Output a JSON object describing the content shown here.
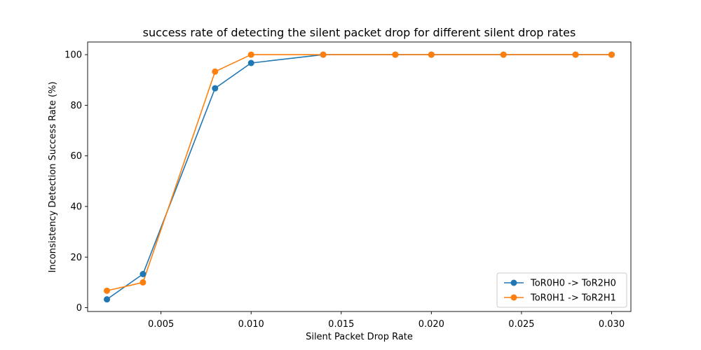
{
  "chart_data": {
    "type": "line",
    "title": "success rate of detecting the silent packet drop for different silent drop rates",
    "xlabel": "Silent Packet Drop Rate",
    "ylabel": "Inconsistency Detection Success Rate (%)",
    "xlim": [
      0.00093,
      0.03107
    ],
    "ylim": [
      -1.5,
      105.0
    ],
    "xticks": [
      0.005,
      0.01,
      0.015,
      0.02,
      0.025,
      0.03
    ],
    "xtick_labels": [
      "0.005",
      "0.010",
      "0.015",
      "0.020",
      "0.025",
      "0.030"
    ],
    "yticks": [
      0,
      20,
      40,
      60,
      80,
      100
    ],
    "ytick_labels": [
      "0",
      "20",
      "40",
      "60",
      "80",
      "100"
    ],
    "grid": false,
    "legend_position": "lower-right",
    "series": [
      {
        "name": "ToR0H0 -> ToR2H0",
        "color": "#1f77b4",
        "marker": "circle",
        "x": [
          0.002,
          0.004,
          0.008,
          0.01,
          0.014,
          0.018,
          0.02,
          0.024,
          0.028,
          0.03
        ],
        "y": [
          3.3,
          13.3,
          86.7,
          96.7,
          100,
          100,
          100,
          100,
          100,
          100
        ]
      },
      {
        "name": "ToR0H1 -> ToR2H1",
        "color": "#ff7f0e",
        "marker": "circle",
        "x": [
          0.002,
          0.004,
          0.008,
          0.01,
          0.014,
          0.018,
          0.02,
          0.024,
          0.028,
          0.03
        ],
        "y": [
          6.7,
          10.0,
          93.3,
          100,
          100,
          100,
          100,
          100,
          100,
          100
        ]
      }
    ]
  }
}
